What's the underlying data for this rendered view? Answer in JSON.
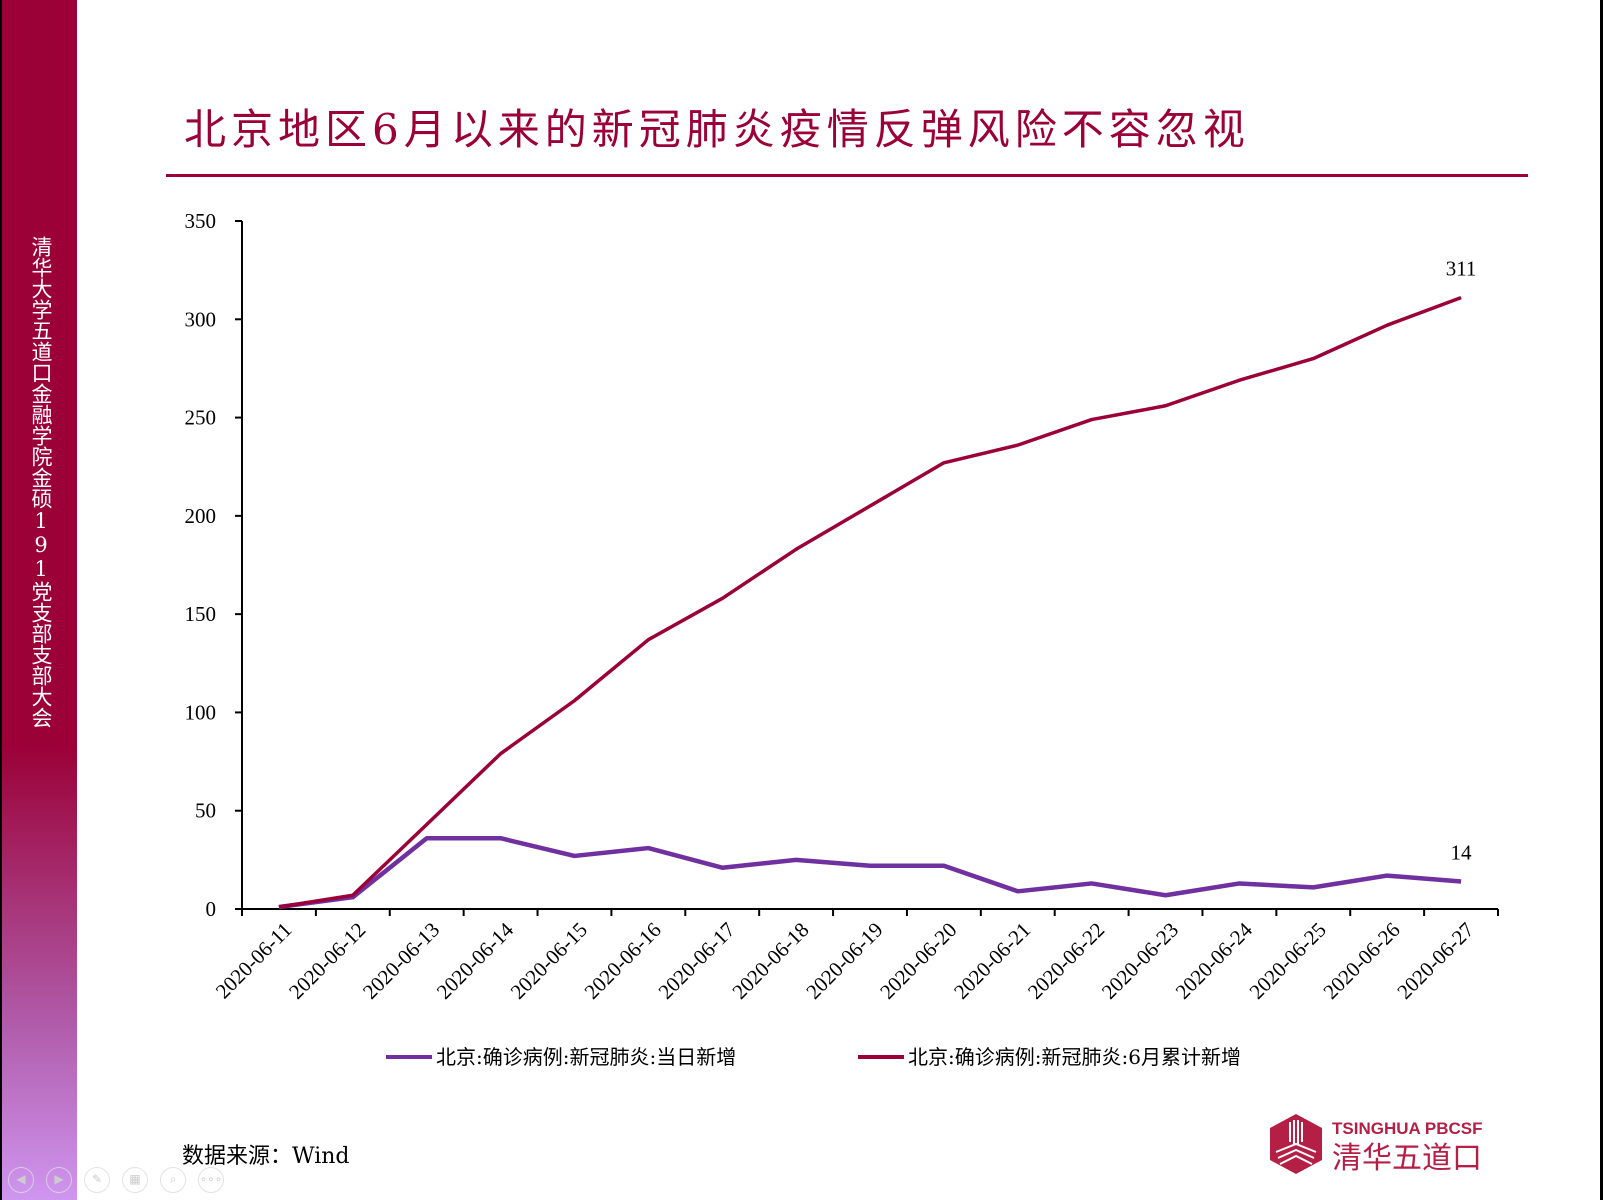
{
  "sidebar_text": "清华大学五道口金融学院金硕191党支部支部大会",
  "title": "北京地区6月以来的新冠肺炎疫情反弹风险不容忽视",
  "source": "数据来源：Wind",
  "logo": {
    "en": "TSINGHUA PBCSF",
    "cn": "清华五道口"
  },
  "colors": {
    "brand": "#9b0036",
    "daily": "#7030a0",
    "cumulative": "#9b0036"
  },
  "nav_icons": [
    "previous-icon",
    "next-icon",
    "pen-icon",
    "slides-icon",
    "zoom-icon",
    "more-icon"
  ],
  "chart_data": {
    "type": "line",
    "categories": [
      "2020-06-11",
      "2020-06-12",
      "2020-06-13",
      "2020-06-14",
      "2020-06-15",
      "2020-06-16",
      "2020-06-17",
      "2020-06-18",
      "2020-06-19",
      "2020-06-20",
      "2020-06-21",
      "2020-06-22",
      "2020-06-23",
      "2020-06-24",
      "2020-06-25",
      "2020-06-26",
      "2020-06-27"
    ],
    "ylim": [
      0,
      350
    ],
    "yticks": [
      0,
      50,
      100,
      150,
      200,
      250,
      300,
      350
    ],
    "grid": false,
    "legend_placement": "bottom",
    "series": [
      {
        "name": "北京:确诊病例:新冠肺炎:当日新增",
        "color": "#7030a0",
        "values": [
          1,
          6,
          36,
          36,
          27,
          31,
          21,
          25,
          22,
          22,
          9,
          13,
          7,
          13,
          11,
          17,
          14
        ],
        "end_label": "14"
      },
      {
        "name": "北京:确诊病例:新冠肺炎:6月累计新增",
        "color": "#9b0036",
        "values": [
          1,
          7,
          43,
          79,
          106,
          137,
          158,
          183,
          205,
          227,
          236,
          249,
          256,
          269,
          280,
          297,
          311
        ],
        "end_label": "311"
      }
    ]
  }
}
